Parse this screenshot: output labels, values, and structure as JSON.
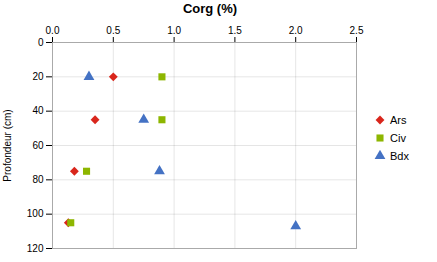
{
  "chart_data": {
    "type": "scatter",
    "title": "Corg (%)",
    "ylabel": "Profondeur (cm)",
    "xlim": [
      0.0,
      2.5
    ],
    "xticks": [
      {
        "value": 0,
        "label": "0.0"
      },
      0.5,
      {
        "value": 1,
        "label": "1.0"
      },
      1.5,
      {
        "value": 2,
        "label": "2.0"
      },
      2.5
    ],
    "ylim": [
      120,
      0
    ],
    "yticks": [
      0,
      20,
      40,
      60,
      80,
      100,
      120
    ],
    "grid": true,
    "legend": "right",
    "series": [
      {
        "name": "Ars",
        "color": "#d9261c",
        "marker": "diamond",
        "x": [
          0.5,
          0.35,
          0.18,
          0.13
        ],
        "values": [
          20,
          45,
          75,
          105
        ]
      },
      {
        "name": "Civ",
        "color": "#8db600",
        "marker": "square",
        "x": [
          0.9,
          0.9,
          0.28,
          0.15
        ],
        "values": [
          20,
          45,
          75,
          105
        ]
      },
      {
        "name": "Bdx",
        "color": "#4472c4",
        "marker": "triangle",
        "x": [
          0.3,
          0.75,
          0.88,
          2.0
        ],
        "values": [
          20,
          45,
          75,
          107
        ]
      }
    ]
  }
}
